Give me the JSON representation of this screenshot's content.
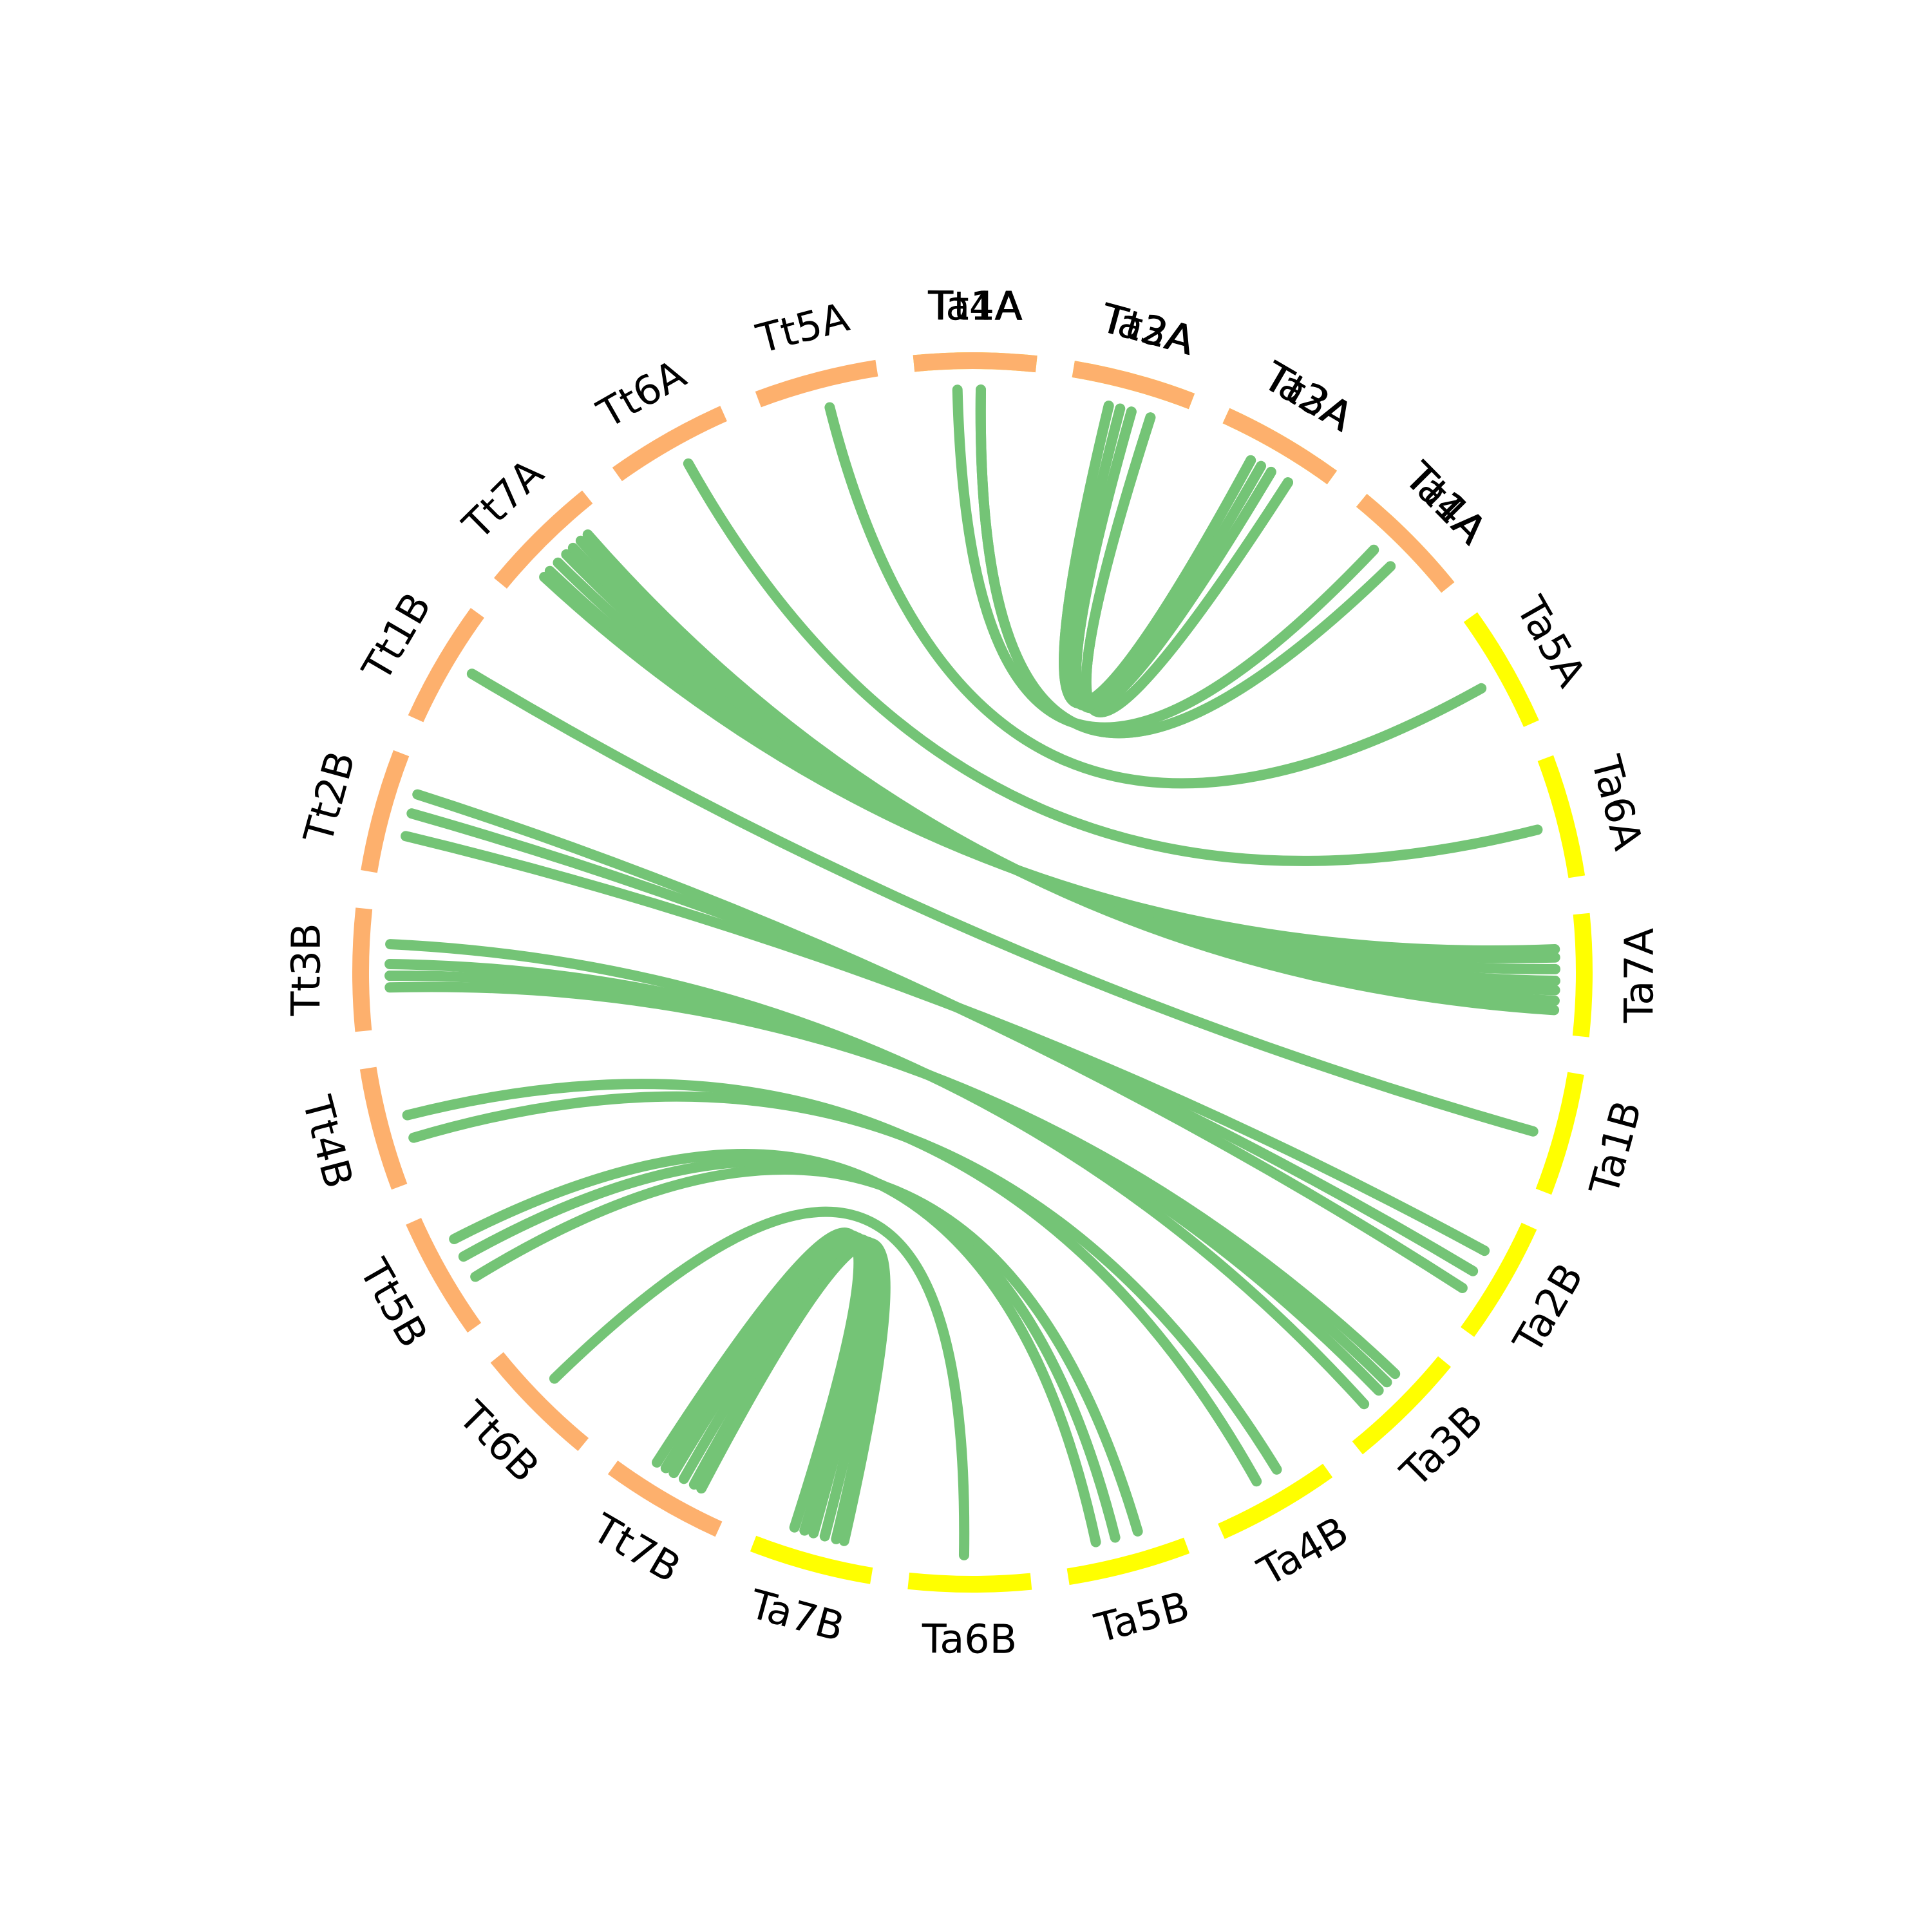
{
  "colors": {
    "group_a": "#FDB06D",
    "group_b": "#FFFF00",
    "link": "#74C476",
    "background": "#FFFFFF"
  },
  "segments": [
    {
      "label": "Ta1A",
      "group": "b",
      "start": -5.5,
      "end": 6
    },
    {
      "label": "Ta2A",
      "group": "b",
      "start": 9.5,
      "end": 21
    },
    {
      "label": "Ta3A",
      "group": "b",
      "start": 24.5,
      "end": 36
    },
    {
      "label": "Ta4A",
      "group": "b",
      "start": 39.5,
      "end": 51
    },
    {
      "label": "Ta5A",
      "group": "b",
      "start": 54.5,
      "end": 66
    },
    {
      "label": "Ta6A",
      "group": "b",
      "start": 69.5,
      "end": 81
    },
    {
      "label": "Ta7A",
      "group": "b",
      "start": 84.5,
      "end": 96
    },
    {
      "label": "Ta1B",
      "group": "b",
      "start": 99.5,
      "end": 111
    },
    {
      "label": "Ta2B",
      "group": "b",
      "start": 114.5,
      "end": 126
    },
    {
      "label": "Ta3B",
      "group": "b",
      "start": 129.5,
      "end": 141
    },
    {
      "label": "Ta4B",
      "group": "b",
      "start": 144.5,
      "end": 156
    },
    {
      "label": "Ta5B",
      "group": "b",
      "start": 159.5,
      "end": 171
    },
    {
      "label": "Ta6B",
      "group": "b",
      "start": 174.5,
      "end": 186
    },
    {
      "label": "Ta7B",
      "group": "b",
      "start": 189.5,
      "end": 201
    },
    {
      "label": "Tt7B",
      "group": "a",
      "start": 204.5,
      "end": 216
    },
    {
      "label": "Tt6B",
      "group": "a",
      "start": 219.5,
      "end": 231
    },
    {
      "label": "Tt5B",
      "group": "a",
      "start": 234.5,
      "end": 246
    },
    {
      "label": "Tt4B",
      "group": "a",
      "start": 249.5,
      "end": 261
    },
    {
      "label": "Tt3B",
      "group": "a",
      "start": 264.5,
      "end": 276
    },
    {
      "label": "Tt2B",
      "group": "a",
      "start": 279.5,
      "end": 291
    },
    {
      "label": "Tt1B",
      "group": "a",
      "start": 294.5,
      "end": 306
    },
    {
      "label": "Tt7A",
      "group": "a",
      "start": 309.5,
      "end": 321
    },
    {
      "label": "Tt6A",
      "group": "a",
      "start": 324.5,
      "end": 336
    },
    {
      "label": "Tt5A",
      "group": "a",
      "start": 339.5,
      "end": 351
    },
    {
      "label": "Tt4A",
      "group": "a",
      "start": 354.5,
      "end": 366
    },
    {
      "label": "Tt3A",
      "group": "a",
      "start": 369.5,
      "end": 381
    },
    {
      "label": "Tt2A",
      "group": "a",
      "start": 384.5,
      "end": 396
    },
    {
      "label": "Tt1A",
      "group": "a",
      "start": 399.5,
      "end": 411
    }
  ],
  "links": [
    {
      "from": "Tt1A",
      "to": "Ta1A"
    },
    {
      "from": "Tt1A",
      "to": "Ta1A"
    },
    {
      "from": "Tt2A",
      "to": "Ta2A"
    },
    {
      "from": "Tt2A",
      "to": "Ta2A"
    },
    {
      "from": "Tt2A",
      "to": "Ta2A"
    },
    {
      "from": "Tt3A",
      "to": "Ta3A"
    },
    {
      "from": "Tt3A",
      "to": "Ta3A"
    },
    {
      "from": "Tt3A",
      "to": "Ta3A"
    },
    {
      "from": "Tt3A",
      "to": "Ta3A"
    },
    {
      "from": "Tt4A",
      "to": "Ta4A"
    },
    {
      "from": "Tt5A",
      "to": "Ta5A"
    },
    {
      "from": "Tt6A",
      "to": "Ta6A"
    },
    {
      "from": "Tt7A",
      "to": "Ta7A"
    },
    {
      "from": "Tt7A",
      "to": "Ta7A"
    },
    {
      "from": "Tt7A",
      "to": "Ta7A"
    },
    {
      "from": "Tt7A",
      "to": "Ta7A"
    },
    {
      "from": "Tt7A",
      "to": "Ta7A"
    },
    {
      "from": "Tt7A",
      "to": "Ta7A"
    },
    {
      "from": "Tt7A",
      "to": "Ta7A"
    },
    {
      "from": "Tt1B",
      "to": "Ta1B"
    },
    {
      "from": "Tt2B",
      "to": "Ta2B"
    },
    {
      "from": "Tt2B",
      "to": "Ta2B"
    },
    {
      "from": "Tt2B",
      "to": "Ta2B"
    },
    {
      "from": "Tt3B",
      "to": "Ta3B"
    },
    {
      "from": "Tt3B",
      "to": "Ta3B"
    },
    {
      "from": "Tt3B",
      "to": "Ta3B"
    },
    {
      "from": "Tt3B",
      "to": "Ta3B"
    },
    {
      "from": "Tt4B",
      "to": "Ta4B"
    },
    {
      "from": "Tt4B",
      "to": "Ta4B"
    },
    {
      "from": "Tt5B",
      "to": "Ta5B"
    },
    {
      "from": "Tt5B",
      "to": "Ta5B"
    },
    {
      "from": "Tt5B",
      "to": "Ta5B"
    },
    {
      "from": "Tt6B",
      "to": "Ta6B"
    },
    {
      "from": "Tt7B",
      "to": "Ta7B"
    },
    {
      "from": "Tt7B",
      "to": "Ta7B"
    },
    {
      "from": "Tt7B",
      "to": "Ta7B"
    },
    {
      "from": "Tt7B",
      "to": "Ta7B"
    },
    {
      "from": "Tt7B",
      "to": "Ta7B"
    },
    {
      "from": "Tt7B",
      "to": "Ta7B"
    }
  ]
}
